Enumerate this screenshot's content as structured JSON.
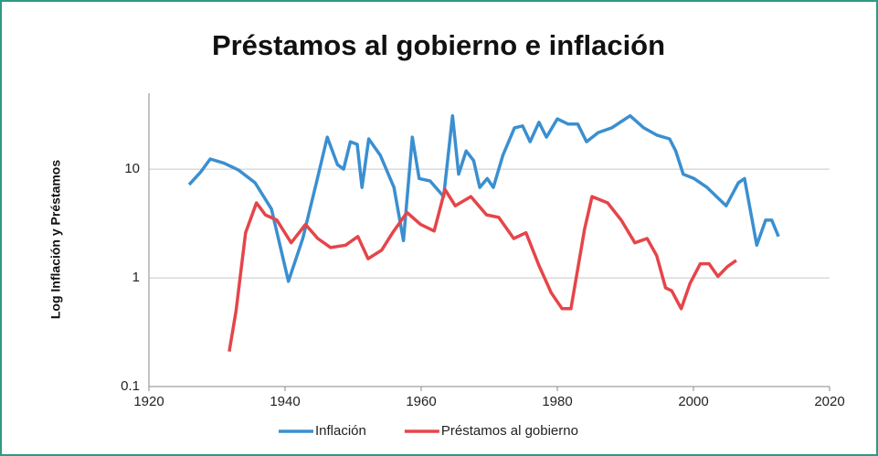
{
  "chart_data": {
    "type": "line",
    "title": "Préstamos al gobierno e inflación",
    "ylabel": "Log Inflación y Préstamos",
    "log_y": true,
    "grid": true,
    "legend": "bottom",
    "xlim": [
      1920,
      2020
    ],
    "xticks": [
      1920,
      1940,
      1960,
      1980,
      2000,
      2020
    ],
    "ylim": [
      0.1,
      50
    ],
    "yticks": [
      0.1,
      1,
      10
    ],
    "series": [
      {
        "name": "Inflación",
        "color": "#3a8fd0",
        "x": [
          1925.9,
          1927.6,
          1929,
          1931,
          1933.2,
          1935.6,
          1938,
          1940.5,
          1942.6,
          1944.6,
          1946.2,
          1947.7,
          1948.6,
          1949.6,
          1950.6,
          1951.3,
          1952.3,
          1954,
          1956,
          1957.4,
          1958.7,
          1959.7,
          1961.3,
          1963.3,
          1964.6,
          1965.5,
          1966.6,
          1967.7,
          1968.6,
          1969.7,
          1970.6,
          1972,
          1973.7,
          1974.9,
          1976,
          1977.3,
          1978.4,
          1980,
          1981.6,
          1983,
          1984.3,
          1986,
          1988,
          1990.7,
          1992.7,
          1994.7,
          1996.5,
          1997.4,
          1998.5,
          2000.1,
          2002,
          2004.8,
          2006.6,
          2007.5,
          2009.3,
          2010.6,
          2011.5,
          2012.5
        ],
        "values": [
          7.2,
          9.4,
          12.4,
          11.4,
          9.8,
          7.5,
          4.3,
          0.93,
          2.3,
          7.5,
          19.7,
          11,
          10,
          17.9,
          16.9,
          6.8,
          19,
          13.4,
          6.8,
          2.2,
          19.7,
          8.2,
          7.8,
          5.6,
          31,
          9,
          14.7,
          12,
          6.8,
          8.2,
          6.8,
          13.4,
          24,
          25,
          17.9,
          27,
          19.7,
          29,
          26,
          26,
          17.9,
          21.7,
          24,
          31,
          24,
          20.5,
          19,
          14.7,
          9,
          8.2,
          6.8,
          4.6,
          7.5,
          8.2,
          2,
          3.4,
          3.4,
          2.4
        ]
      },
      {
        "name": "Préstamos al gobierno",
        "color": "#e5454a",
        "x": [
          1931.8,
          1932.8,
          1934.2,
          1935.8,
          1937.1,
          1938.8,
          1940.9,
          1943,
          1944.8,
          1946.7,
          1948.9,
          1950.7,
          1952.2,
          1954.2,
          1955.8,
          1957.9,
          1959.9,
          1961.9,
          1963.5,
          1965,
          1967.3,
          1969.6,
          1971.4,
          1973.6,
          1975.4,
          1977.3,
          1979.1,
          1980.7,
          1982,
          1984,
          1985.1,
          1987.4,
          1989.4,
          1991.4,
          1993.2,
          1994.6,
          1995.9,
          1996.8,
          1998.2,
          1999.5,
          2001,
          2002.3,
          2003.6,
          2005,
          2006.3
        ],
        "values": [
          0.21,
          0.5,
          2.6,
          4.9,
          3.8,
          3.4,
          2.1,
          3.1,
          2.3,
          1.9,
          2,
          2.4,
          1.5,
          1.8,
          2.6,
          4,
          3.1,
          2.7,
          6.5,
          4.6,
          5.6,
          3.8,
          3.6,
          2.3,
          2.6,
          1.3,
          0.73,
          0.52,
          0.52,
          2.8,
          5.6,
          4.9,
          3.4,
          2.1,
          2.3,
          1.6,
          0.81,
          0.76,
          0.52,
          0.89,
          1.35,
          1.35,
          1.03,
          1.27,
          1.45
        ]
      }
    ]
  }
}
